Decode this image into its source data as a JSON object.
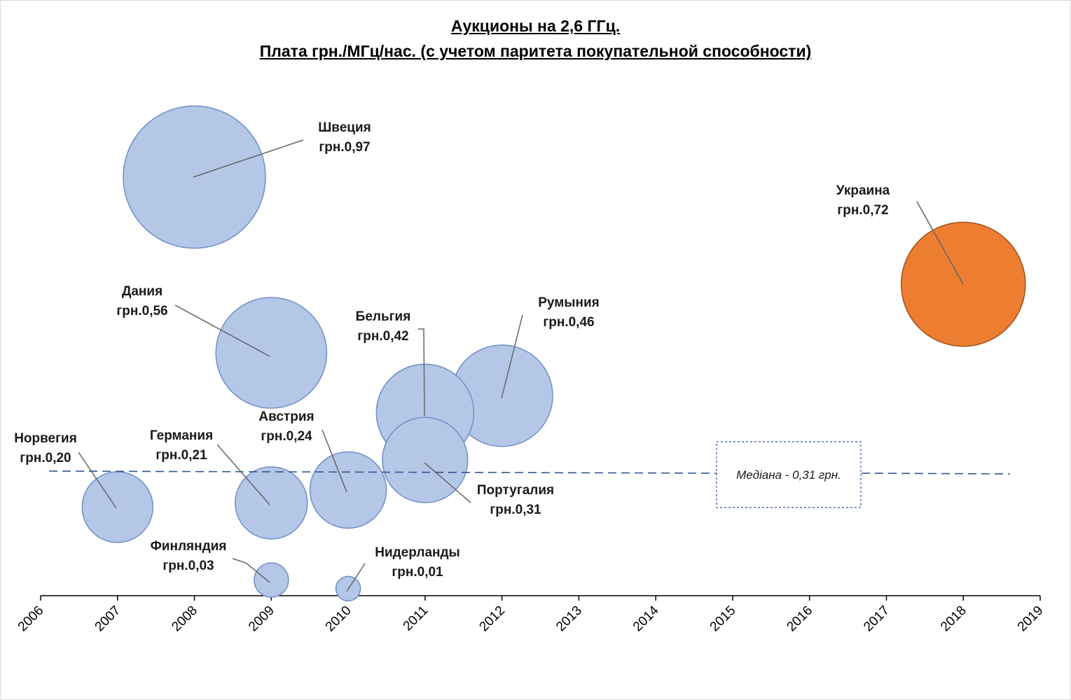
{
  "chart_data": {
    "type": "bubble",
    "title": "Аукционы на 2,6 ГГц.",
    "subtitle": "Плата грн./МГц/нас. (с учетом паритета покупательной способности)",
    "xlim": [
      2006,
      2019
    ],
    "x_ticks": [
      "2006",
      "2007",
      "2008",
      "2009",
      "2010",
      "2011",
      "2012",
      "2013",
      "2014",
      "2015",
      "2016",
      "2017",
      "2018",
      "2019"
    ],
    "median": {
      "value": 0.31,
      "label": "Медіана - 0,31 грн."
    },
    "points": [
      {
        "country": "Норвегия",
        "x": 2007.0,
        "value": 0.2,
        "value_label": "грн.0,20",
        "color": "#b4c7e7"
      },
      {
        "country": "Швеция",
        "x": 2008.0,
        "value": 0.97,
        "value_label": "грн.0,97",
        "color": "#b4c7e7"
      },
      {
        "country": "Дания",
        "x": 2009.0,
        "value": 0.56,
        "value_label": "грн.0,56",
        "color": "#b4c7e7"
      },
      {
        "country": "Германия",
        "x": 2009.0,
        "value": 0.21,
        "value_label": "грн.0,21",
        "color": "#b4c7e7"
      },
      {
        "country": "Финляндия",
        "x": 2009.0,
        "value": 0.03,
        "value_label": "грн.0,03",
        "color": "#b4c7e7"
      },
      {
        "country": "Австрия",
        "x": 2010.0,
        "value": 0.24,
        "value_label": "грн.0,24",
        "color": "#b4c7e7"
      },
      {
        "country": "Нидерланды",
        "x": 2010.0,
        "value": 0.01,
        "value_label": "грн.0,01",
        "color": "#b4c7e7"
      },
      {
        "country": "Бельгия",
        "x": 2011.0,
        "value": 0.42,
        "value_label": "грн.0,42",
        "color": "#b4c7e7"
      },
      {
        "country": "Португалия",
        "x": 2011.0,
        "value": 0.31,
        "value_label": "грн.0,31",
        "color": "#b4c7e7"
      },
      {
        "country": "Румыния",
        "x": 2012.0,
        "value": 0.46,
        "value_label": "грн.0,46",
        "color": "#b4c7e7"
      },
      {
        "country": "Украина",
        "x": 2018.0,
        "value": 0.72,
        "value_label": "грн.0,72",
        "color": "#ed7d31"
      }
    ]
  }
}
